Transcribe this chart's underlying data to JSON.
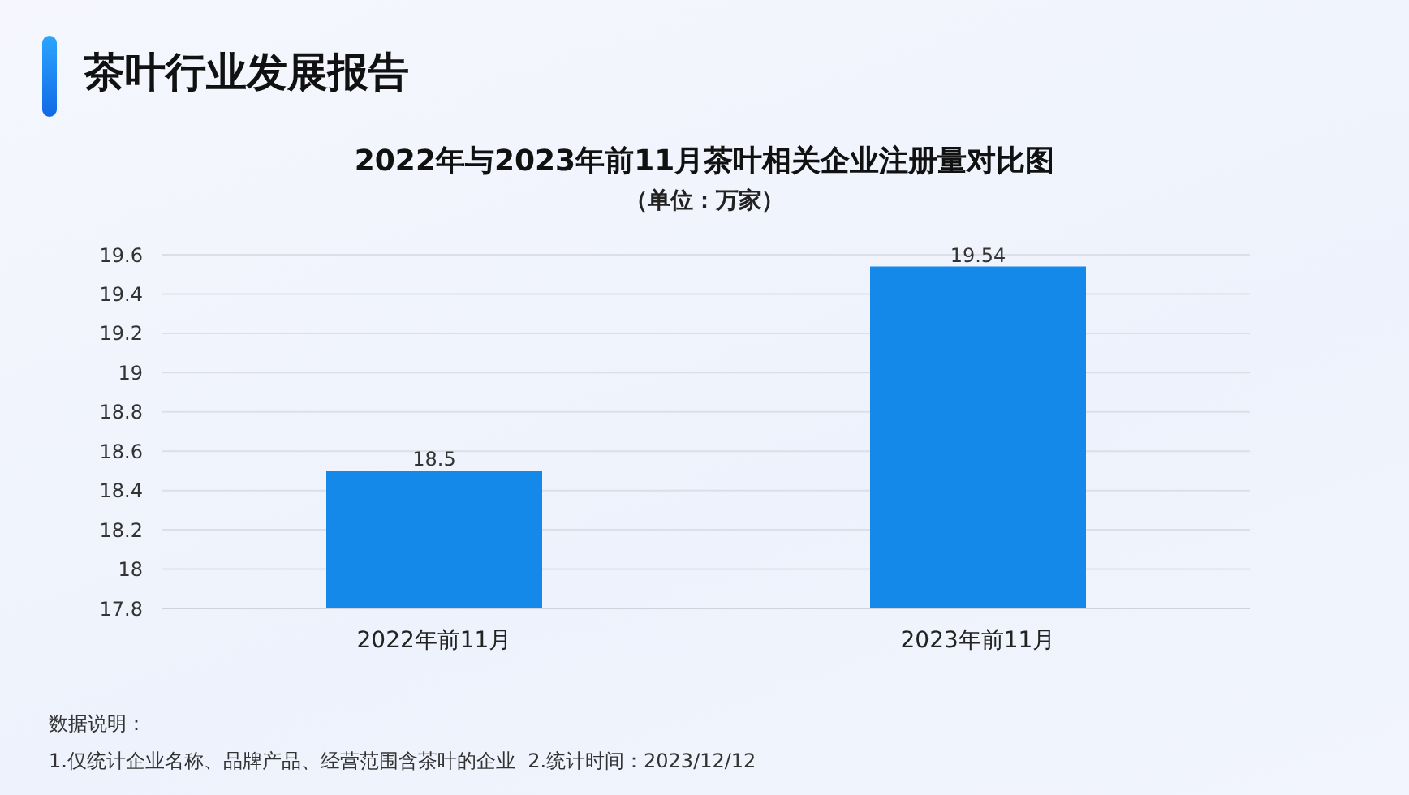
{
  "chart_data": {
    "type": "bar",
    "title": "2022年与2023年前11月茶叶相关企业注册量对比图",
    "subtitle": "（单位：万家）",
    "annotations": [
      "茶叶行业发展报告",
      "数据说明：",
      "1.仅统计企业名称、品牌产品、经营范围含茶叶的企业  2.统计时间：2023/12/12"
    ],
    "categories": [
      "2022年前11月",
      "2023年前11月"
    ],
    "values": [
      18.5,
      19.54
    ],
    "color": "#1589ea",
    "ylim": [
      17.8,
      19.6
    ],
    "yticks": [
      17.8,
      18,
      18.2,
      18.4,
      18.6,
      18.8,
      19,
      19.2,
      19.4,
      19.6
    ],
    "grid": "y",
    "data_labels": true
  }
}
